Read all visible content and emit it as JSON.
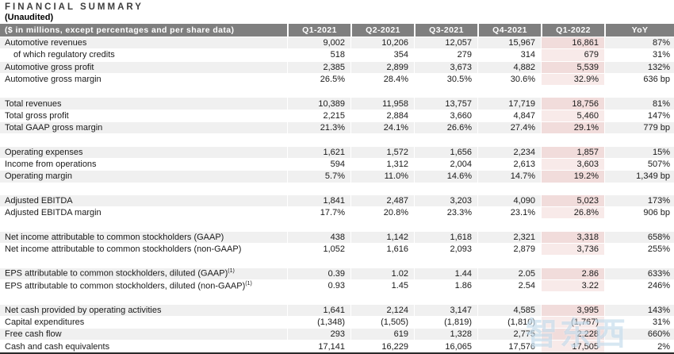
{
  "title": "FINANCIAL SUMMARY",
  "subtitle": "(Unaudited)",
  "watermark": {
    "text": "智东西"
  },
  "table": {
    "label_header": "($ in millions, except percentages and per share data)",
    "columns": [
      "Q1-2021",
      "Q2-2021",
      "Q3-2021",
      "Q4-2021",
      "Q1-2022",
      "YoY"
    ],
    "highlight_column": "Q1-2022",
    "colors": {
      "header_bg": "#7f7f7f",
      "header_text": "#ffffff",
      "stripe_bg": "#f0f0f0",
      "highlight_on_stripe": "#f1dcdb",
      "highlight_on_plain": "#f8eae9",
      "bottom_border": "#2a2a2a"
    },
    "sections": [
      {
        "rows": [
          {
            "label": "Automotive revenues",
            "values": [
              "9,002",
              "10,206",
              "12,057",
              "15,967",
              "16,861"
            ],
            "yoy": "87%"
          },
          {
            "label": "of which regulatory credits",
            "indent": true,
            "values": [
              "518",
              "354",
              "279",
              "314",
              "679"
            ],
            "yoy": "31%"
          },
          {
            "label": "Automotive gross profit",
            "values": [
              "2,385",
              "2,899",
              "3,673",
              "4,882",
              "5,539"
            ],
            "yoy": "132%"
          },
          {
            "label": "Automotive gross margin",
            "values": [
              "26.5%",
              "28.4%",
              "30.5%",
              "30.6%",
              "32.9%"
            ],
            "yoy": "636 bp"
          }
        ]
      },
      {
        "rows": [
          {
            "label": "Total revenues",
            "values": [
              "10,389",
              "11,958",
              "13,757",
              "17,719",
              "18,756"
            ],
            "yoy": "81%"
          },
          {
            "label": "Total gross profit",
            "values": [
              "2,215",
              "2,884",
              "3,660",
              "4,847",
              "5,460"
            ],
            "yoy": "147%"
          },
          {
            "label": "Total GAAP gross margin",
            "values": [
              "21.3%",
              "24.1%",
              "26.6%",
              "27.4%",
              "29.1%"
            ],
            "yoy": "779 bp"
          }
        ]
      },
      {
        "rows": [
          {
            "label": "Operating expenses",
            "values": [
              "1,621",
              "1,572",
              "1,656",
              "2,234",
              "1,857"
            ],
            "yoy": "15%"
          },
          {
            "label": "Income from operations",
            "values": [
              "594",
              "1,312",
              "2,004",
              "2,613",
              "3,603"
            ],
            "yoy": "507%"
          },
          {
            "label": "Operating margin",
            "values": [
              "5.7%",
              "11.0%",
              "14.6%",
              "14.7%",
              "19.2%"
            ],
            "yoy": "1,349 bp"
          }
        ]
      },
      {
        "rows": [
          {
            "label": "Adjusted EBITDA",
            "values": [
              "1,841",
              "2,487",
              "3,203",
              "4,090",
              "5,023"
            ],
            "yoy": "173%"
          },
          {
            "label": "Adjusted EBITDA margin",
            "values": [
              "17.7%",
              "20.8%",
              "23.3%",
              "23.1%",
              "26.8%"
            ],
            "yoy": "906 bp"
          }
        ]
      },
      {
        "rows": [
          {
            "label": "Net income attributable to common stockholders (GAAP)",
            "values": [
              "438",
              "1,142",
              "1,618",
              "2,321",
              "3,318"
            ],
            "yoy": "658%"
          },
          {
            "label": "Net income attributable to common stockholders (non-GAAP)",
            "values": [
              "1,052",
              "1,616",
              "2,093",
              "2,879",
              "3,736"
            ],
            "yoy": "255%"
          }
        ]
      },
      {
        "rows": [
          {
            "label": "EPS attributable to common stockholders, diluted (GAAP)",
            "sup": "(1)",
            "values": [
              "0.39",
              "1.02",
              "1.44",
              "2.05",
              "2.86"
            ],
            "yoy": "633%"
          },
          {
            "label": "EPS attributable to common stockholders, diluted (non-GAAP)",
            "sup": "(1)",
            "values": [
              "0.93",
              "1.45",
              "1.86",
              "2.54",
              "3.22"
            ],
            "yoy": "246%"
          }
        ]
      },
      {
        "rows": [
          {
            "label": "Net cash provided by operating activities",
            "values": [
              "1,641",
              "2,124",
              "3,147",
              "4,585",
              "3,995"
            ],
            "yoy": "143%"
          },
          {
            "label": "Capital expenditures",
            "values": [
              "(1,348)",
              "(1,505)",
              "(1,819)",
              "(1,810)",
              "(1,767)"
            ],
            "yoy": "31%"
          },
          {
            "label": "Free cash flow",
            "values": [
              "293",
              "619",
              "1,328",
              "2,775",
              "2,228"
            ],
            "yoy": "660%"
          },
          {
            "label": "Cash and cash equivalents",
            "values": [
              "17,141",
              "16,229",
              "16,065",
              "17,576",
              "17,505"
            ],
            "yoy": "2%"
          }
        ]
      }
    ]
  }
}
